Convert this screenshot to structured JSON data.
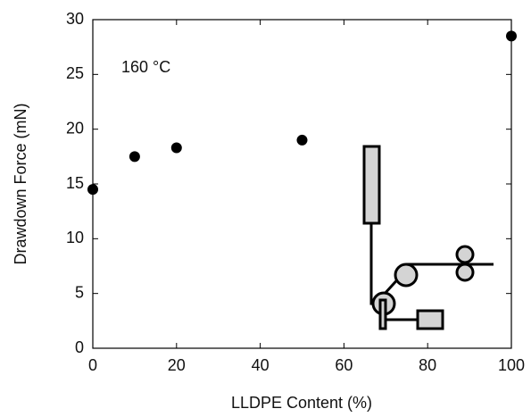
{
  "chart_data": {
    "type": "scatter",
    "xlabel": "LLDPE Content (%)",
    "ylabel": "Drawdown Force (mN)",
    "annotation": "160 °C",
    "x": [
      0,
      10,
      20,
      50,
      100
    ],
    "values": [
      14.5,
      17.5,
      18.3,
      19,
      28.5
    ],
    "color": "#000000",
    "xlim": [
      0,
      100
    ],
    "ylim": [
      0,
      30
    ],
    "xticks": [
      0,
      20,
      40,
      60,
      80,
      100
    ],
    "yticks": [
      0,
      5,
      10,
      15,
      20,
      25,
      30
    ]
  }
}
